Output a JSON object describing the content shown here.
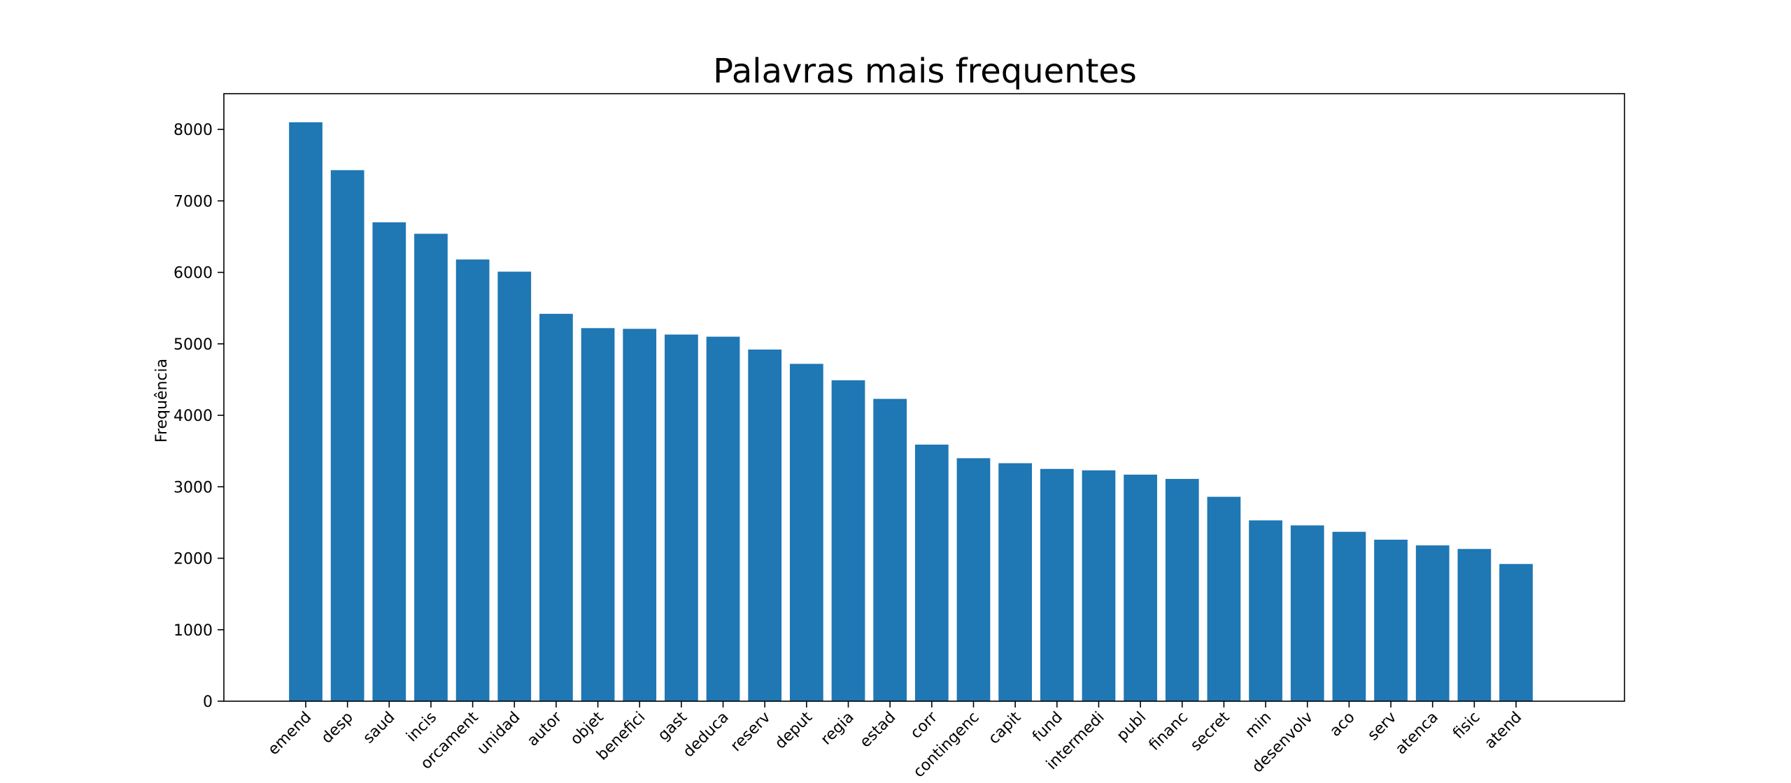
{
  "chart_data": {
    "type": "bar",
    "title": "Palavras mais frequentes",
    "xlabel": "",
    "ylabel": "Frequência",
    "ylim": [
      0,
      8500
    ],
    "yticks": [
      0,
      1000,
      2000,
      3000,
      4000,
      5000,
      6000,
      7000,
      8000
    ],
    "grid": false,
    "bar_color": "#1f77b4",
    "categories": [
      "emend",
      "desp",
      "saud",
      "incis",
      "orcament",
      "unidad",
      "autor",
      "objet",
      "benefici",
      "gast",
      "deduca",
      "reserv",
      "deput",
      "regia",
      "estad",
      "corr",
      "contingenc",
      "capit",
      "fund",
      "intermedi",
      "publ",
      "financ",
      "secret",
      "min",
      "desenvolv",
      "aco",
      "serv",
      "atenca",
      "fisic",
      "atend"
    ],
    "values": [
      8100,
      7430,
      6700,
      6540,
      6180,
      6010,
      5420,
      5220,
      5210,
      5130,
      5100,
      4920,
      4720,
      4490,
      4230,
      3590,
      3400,
      3330,
      3250,
      3230,
      3170,
      3110,
      2860,
      2530,
      2460,
      2370,
      2260,
      2180,
      2130,
      1920
    ]
  }
}
